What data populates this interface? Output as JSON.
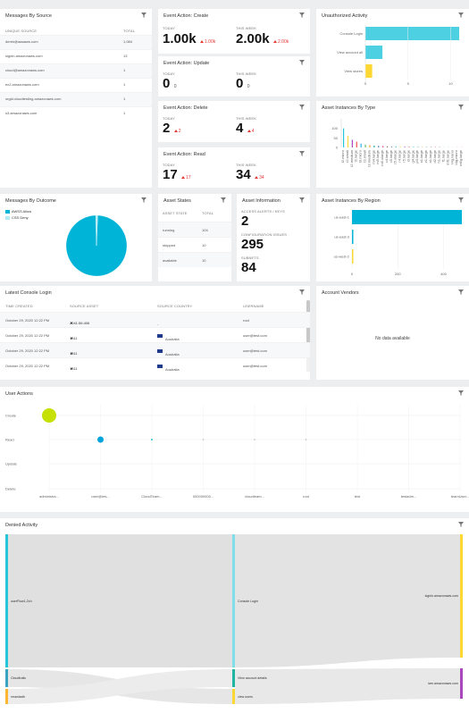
{
  "messages_by_source": {
    "title": "Messages By Source",
    "col_source": "UNIQUE SOURCE",
    "col_total": "TOTAL",
    "rows": [
      {
        "source": "derek@aaaaws.com",
        "total": "1,084"
      },
      {
        "source": "signin.amazonaws.com",
        "total": "13"
      },
      {
        "source": "cloud@amazonaws.com",
        "total": "1"
      },
      {
        "source": "ec2.amazonaws.com",
        "total": "1"
      },
      {
        "source": "orgid.cloudtesting.amazonaws.com",
        "total": "1"
      },
      {
        "source": "s3.amazonaws.com",
        "total": "1"
      }
    ]
  },
  "event_create": {
    "title": "Event Action: Create",
    "today_label": "TODAY",
    "week_label": "THIS WEEK",
    "today": "1.00k",
    "today_delta": "1.00k",
    "week": "2.00k",
    "week_delta": "2.00k"
  },
  "event_update": {
    "title": "Event Action: Update",
    "today_label": "TODAY",
    "week_label": "THIS WEEK",
    "today": "0",
    "today_sub": "0",
    "week": "0",
    "week_sub": "0"
  },
  "event_delete": {
    "title": "Event Action: Delete",
    "today_label": "TODAY",
    "week_label": "THIS WEEK",
    "today": "2",
    "today_delta": "2",
    "week": "4",
    "week_delta": "4"
  },
  "event_read": {
    "title": "Event Action: Read",
    "today_label": "TODAY",
    "week_label": "THIS WEEK",
    "today": "17",
    "today_delta": "17",
    "week": "34",
    "week_delta": "34"
  },
  "unauthorized": {
    "title": "Unauthorized Activity",
    "chart_data": {
      "type": "bar",
      "orientation": "horizontal",
      "categories": [
        "Console Login",
        "View account all",
        "View stores"
      ],
      "values": [
        11,
        2,
        0.8
      ],
      "colors": [
        "#4dd0e1",
        "#4dd0e1",
        "#fdd835"
      ],
      "xlim": [
        0,
        11
      ],
      "xticks": [
        "0",
        "5",
        "10"
      ]
    }
  },
  "asset_by_type": {
    "title": "Asset Instances By Type",
    "chart_data": {
      "type": "bar",
      "categories": [
        "t2.micro",
        "t2.small",
        "t2.medium",
        "t2.large",
        "t3.micro",
        "t3.small",
        "t3.medium",
        "m4.large",
        "m5.large",
        "m5.xlarge",
        "c4.large",
        "c5.large",
        "c5.xlarge",
        "r4.large",
        "r5.large",
        "i3.large",
        "g4.large",
        "p3.large",
        "x1.large",
        "z1.large",
        "a1.large",
        "d2.large",
        "h1.large",
        "f1.large",
        "inf1.large",
        "t4g.nano",
        "t4g.micro",
        "m6g.large"
      ],
      "values": [
        100,
        60,
        40,
        30,
        20,
        15,
        12,
        10,
        8,
        7,
        6,
        5,
        5,
        4,
        4,
        3,
        3,
        3,
        2,
        2,
        2,
        2,
        2,
        1,
        1,
        1,
        1,
        1
      ],
      "colors": [
        "#26c6da",
        "#fdd835",
        "#ab47bc",
        "#ef5350",
        "#29b6f6",
        "#66bb6a",
        "#ffa726",
        "#26a69a",
        "#5c6bc0",
        "#ec407a",
        "#8d6e63",
        "#78909c",
        "#26c6da",
        "#fdd835",
        "#ab47bc",
        "#ef5350",
        "#29b6f6",
        "#66bb6a",
        "#ffa726",
        "#26a69a",
        "#5c6bc0",
        "#ec407a",
        "#8d6e63",
        "#78909c",
        "#26c6da",
        "#fdd835",
        "#ab47bc",
        "#ef5350"
      ],
      "ylim": [
        0,
        150
      ],
      "yticks": [
        "100",
        "50",
        "0"
      ]
    }
  },
  "by_outcome": {
    "title": "Messages By Outcome",
    "chart_data": {
      "type": "pie",
      "labels": [
        "AWSS Allow",
        "CSS Deny"
      ],
      "values": [
        99,
        1
      ],
      "colors": [
        "#00b4d8",
        "#b2ebf2"
      ]
    }
  },
  "asset_states": {
    "title": "Asset States",
    "col_state": "ASSET STATE",
    "col_total": "TOTAL",
    "rows": [
      {
        "state": "running",
        "total": "104"
      },
      {
        "state": "stopped",
        "total": "10"
      },
      {
        "state": "available",
        "total": "10"
      }
    ]
  },
  "asset_info": {
    "title": "Asset Information",
    "a_label": "ACCESS ALERTS / KEYS",
    "a_value": "2",
    "b_label": "CONFIGURATION ISSUES",
    "b_value": "295",
    "c_label": "SUBNETS",
    "c_value": "84"
  },
  "by_region": {
    "title": "Asset Instances By Region",
    "chart_data": {
      "type": "bar",
      "orientation": "horizontal",
      "categories": [
        "us-east-1",
        "us-east-3",
        "us-west-2"
      ],
      "values": [
        480,
        5,
        5
      ],
      "colors": [
        "#00b4d8",
        "#00b4d8",
        "#fdd835"
      ],
      "xlim": [
        0,
        480
      ],
      "xticks": [
        "0",
        "200",
        "400"
      ]
    }
  },
  "console_login": {
    "title": "Latest Console Login",
    "col_time": "TIME CREATED",
    "col_asset": "SOURCE ASSET",
    "col_country": "SOURCE COUNTRY",
    "col_user": "USERNAME",
    "rows": [
      {
        "time": "October 29, 2020 12:22 PM",
        "asset": "2041:56:406",
        "country": "-",
        "user": "root"
      },
      {
        "time": "October 29, 2020 12:22 PM",
        "asset": "1311",
        "country": "Australia",
        "user": "user@test.com"
      },
      {
        "time": "October 29, 2020 12:22 PM",
        "asset": "1311",
        "country": "Australia",
        "user": "user@test.com"
      },
      {
        "time": "October 29, 2020 12:22 PM",
        "asset": "1311",
        "country": "Australia",
        "user": "user@test.com"
      }
    ]
  },
  "account_vendors": {
    "title": "Account Vendors",
    "empty": "No data available"
  },
  "user_actions": {
    "title": "User Actions",
    "chart_data": {
      "type": "scatter",
      "y_categories": [
        "Create",
        "Read",
        "Update",
        "Delete"
      ],
      "x_categories": [
        "administra...",
        "user@tes...",
        "CloudTeam...",
        "000000000...",
        "cloudteam...",
        "root",
        "test",
        "testadm...",
        "teamUser..."
      ],
      "points": [
        {
          "x": "administra...",
          "y": "Create",
          "size": 16,
          "color": "#c6e000"
        },
        {
          "x": "user@tes...",
          "y": "Read",
          "size": 7,
          "color": "#00a3d9"
        },
        {
          "x": "CloudTeam...",
          "y": "Read",
          "size": 2,
          "color": "#26c6da"
        },
        {
          "x": "000000000...",
          "y": "Read",
          "size": 1,
          "color": "#bbbbbb"
        },
        {
          "x": "cloudteam...",
          "y": "Read",
          "size": 1,
          "color": "#bbbbbb"
        },
        {
          "x": "root",
          "y": "Read",
          "size": 1,
          "color": "#bbbbbb"
        }
      ]
    }
  },
  "denied": {
    "title": "Denied Activity",
    "chart_data": {
      "type": "sankey",
      "left": [
        {
          "label": "userFlow1-2ch",
          "color": "#26c6da"
        },
        {
          "label": "Cloudtrails",
          "color": "#3aa3c0"
        },
        {
          "label": "rmandadh",
          "color": "#fdb62f"
        }
      ],
      "middle": [
        {
          "label": "Console Login",
          "color": "#80deea"
        },
        {
          "label": "View account details",
          "color": "#1fb5a3"
        },
        {
          "label": "view users",
          "color": "#fdd835"
        }
      ],
      "right": [
        {
          "label": "signin.amazonaws.com",
          "color": "#fdd835"
        },
        {
          "label": "iam.amazonaws.com",
          "color": "#ab47bc"
        }
      ]
    }
  }
}
